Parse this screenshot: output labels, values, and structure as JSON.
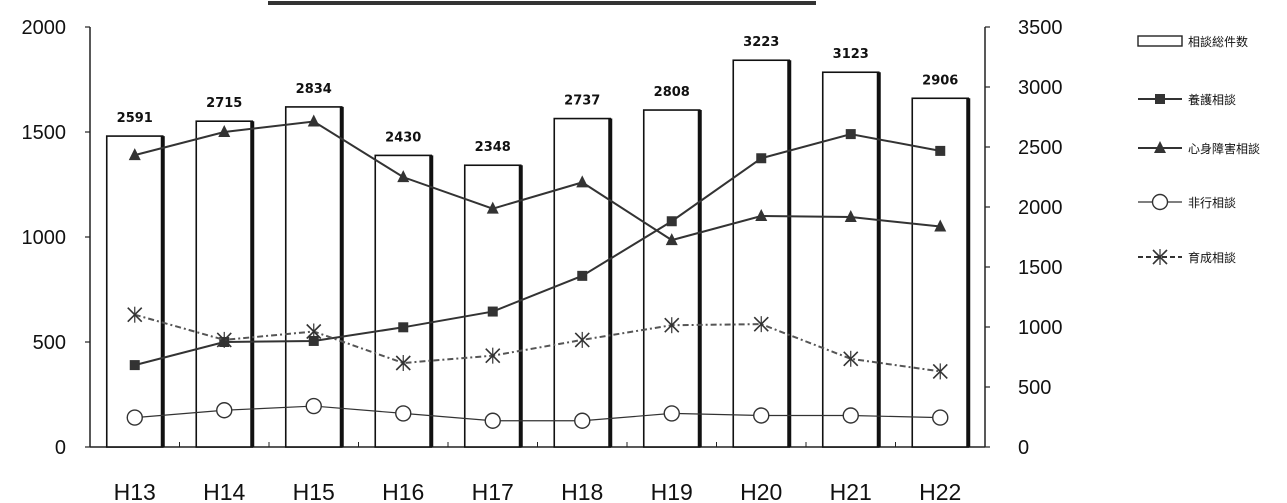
{
  "chart_data": {
    "type": "bar",
    "categories": [
      "H13",
      "H14",
      "H15",
      "H16",
      "H17",
      "H18",
      "H19",
      "H20",
      "H21",
      "H22"
    ],
    "bar_series": {
      "name": "相談総件数",
      "axis": "right",
      "values": [
        2591,
        2715,
        2834,
        2430,
        2348,
        2737,
        2808,
        3223,
        3123,
        2906
      ]
    },
    "series": [
      {
        "name": "養護相談",
        "type": "line",
        "axis": "left",
        "marker": "square-filled",
        "style": "solid",
        "values": [
          390,
          500,
          505,
          570,
          645,
          815,
          1075,
          1375,
          1490,
          1410
        ]
      },
      {
        "name": "心身障害相談",
        "type": "line",
        "axis": "left",
        "marker": "triangle-filled",
        "style": "solid",
        "values": [
          1390,
          1500,
          1550,
          1285,
          1135,
          1260,
          985,
          1100,
          1095,
          1050
        ]
      },
      {
        "name": "非行相談",
        "type": "line",
        "axis": "left",
        "marker": "circle-open",
        "style": "solid",
        "values": [
          140,
          175,
          195,
          160,
          125,
          125,
          160,
          150,
          150,
          140
        ]
      },
      {
        "name": "育成相談",
        "type": "line",
        "axis": "left",
        "marker": "x-star",
        "style": "dash-dot",
        "values": [
          630,
          510,
          550,
          400,
          435,
          510,
          580,
          585,
          420,
          360
        ]
      }
    ],
    "y_left": {
      "min": 0,
      "max": 2000,
      "ticks": [
        "0",
        "500",
        "1000",
        "1500",
        "2000"
      ]
    },
    "y_right": {
      "min": 0,
      "max": 3500,
      "ticks": [
        "0",
        "500",
        "1000",
        "1500",
        "2000",
        "2500",
        "3000",
        "3500"
      ]
    },
    "legend_position": "right",
    "grid": false,
    "colors": {
      "bar_fill": "#ffffff",
      "bar_edge": "#111111",
      "line": "#333333",
      "dashed": "#555555"
    }
  }
}
